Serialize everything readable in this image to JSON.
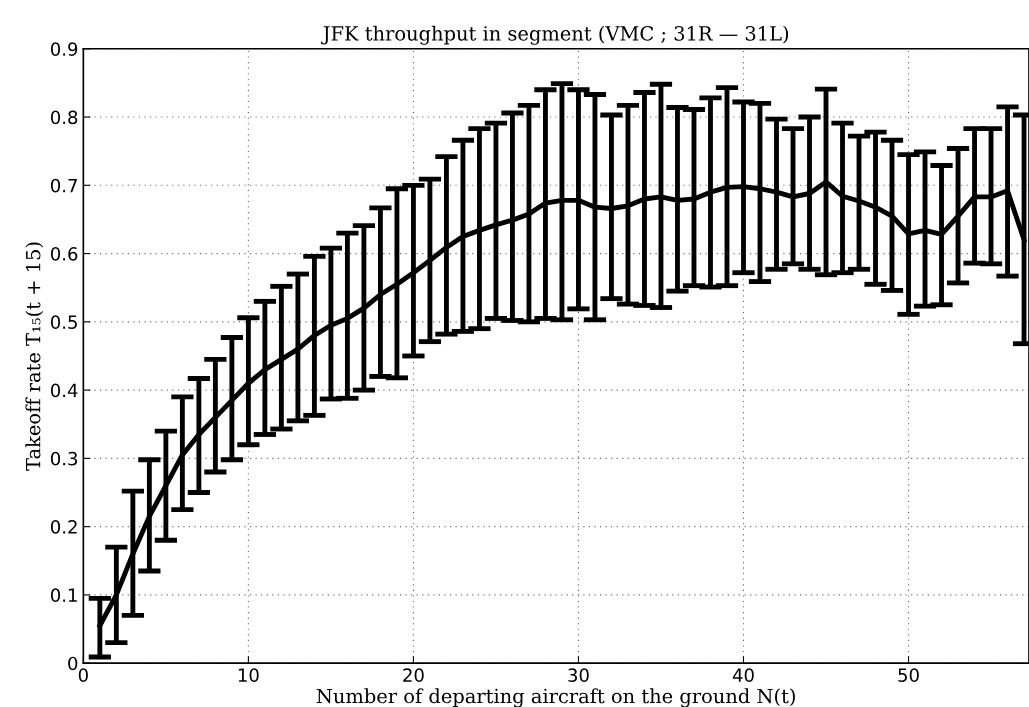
{
  "chart_data": {
    "type": "line",
    "title": "JFK throughput in segment (VMC ; 31R — 31L)",
    "xlabel": "Number of departing aircraft on the ground N(t)",
    "ylabel": "Takeoff rate T̄₁₅(t + 15)",
    "x": [
      1,
      2,
      3,
      4,
      5,
      6,
      7,
      8,
      9,
      10,
      11,
      12,
      13,
      14,
      15,
      16,
      17,
      18,
      19,
      20,
      21,
      22,
      23,
      24,
      25,
      26,
      27,
      28,
      29,
      30,
      31,
      32,
      33,
      34,
      35,
      36,
      37,
      38,
      39,
      40,
      41,
      42,
      43,
      44,
      45,
      46,
      47,
      48,
      49,
      50,
      51,
      52,
      53,
      54,
      55,
      56,
      57
    ],
    "series": [
      {
        "color": "#000000",
        "values": [
          0.055,
          0.1,
          0.16,
          0.215,
          0.26,
          0.305,
          0.335,
          0.36,
          0.385,
          0.41,
          0.43,
          0.445,
          0.46,
          0.48,
          0.495,
          0.505,
          0.52,
          0.54,
          0.555,
          0.572,
          0.59,
          0.609,
          0.625,
          0.634,
          0.642,
          0.649,
          0.658,
          0.674,
          0.678,
          0.678,
          0.668,
          0.666,
          0.67,
          0.68,
          0.683,
          0.678,
          0.68,
          0.69,
          0.697,
          0.698,
          0.695,
          0.69,
          0.683,
          0.688,
          0.705,
          0.684,
          0.677,
          0.668,
          0.655,
          0.629,
          0.634,
          0.628,
          0.655,
          0.683,
          0.683,
          0.692,
          0.62
        ],
        "errors": [
          [
            0.009,
            0.095
          ],
          [
            0.03,
            0.17
          ],
          [
            0.07,
            0.252
          ],
          [
            0.135,
            0.298
          ],
          [
            0.18,
            0.34
          ],
          [
            0.225,
            0.39
          ],
          [
            0.25,
            0.417
          ],
          [
            0.28,
            0.445
          ],
          [
            0.298,
            0.477
          ],
          [
            0.32,
            0.506
          ],
          [
            0.335,
            0.53
          ],
          [
            0.343,
            0.552
          ],
          [
            0.355,
            0.57
          ],
          [
            0.363,
            0.596
          ],
          [
            0.387,
            0.608
          ],
          [
            0.388,
            0.63
          ],
          [
            0.4,
            0.641
          ],
          [
            0.42,
            0.667
          ],
          [
            0.418,
            0.695
          ],
          [
            0.45,
            0.7
          ],
          [
            0.471,
            0.709
          ],
          [
            0.482,
            0.742
          ],
          [
            0.486,
            0.766
          ],
          [
            0.49,
            0.783
          ],
          [
            0.505,
            0.791
          ],
          [
            0.502,
            0.806
          ],
          [
            0.5,
            0.817
          ],
          [
            0.505,
            0.84
          ],
          [
            0.503,
            0.849
          ],
          [
            0.519,
            0.84
          ],
          [
            0.503,
            0.833
          ],
          [
            0.534,
            0.803
          ],
          [
            0.526,
            0.817
          ],
          [
            0.524,
            0.836
          ],
          [
            0.521,
            0.848
          ],
          [
            0.545,
            0.814
          ],
          [
            0.553,
            0.811
          ],
          [
            0.551,
            0.828
          ],
          [
            0.553,
            0.843
          ],
          [
            0.572,
            0.822
          ],
          [
            0.559,
            0.82
          ],
          [
            0.577,
            0.797
          ],
          [
            0.585,
            0.783
          ],
          [
            0.577,
            0.8
          ],
          [
            0.569,
            0.841
          ],
          [
            0.572,
            0.791
          ],
          [
            0.577,
            0.772
          ],
          [
            0.555,
            0.778
          ],
          [
            0.546,
            0.766
          ],
          [
            0.511,
            0.745
          ],
          [
            0.523,
            0.749
          ],
          [
            0.525,
            0.729
          ],
          [
            0.557,
            0.754
          ],
          [
            0.586,
            0.783
          ],
          [
            0.585,
            0.783
          ],
          [
            0.567,
            0.815
          ],
          [
            0.468,
            0.803
          ]
        ]
      }
    ],
    "xlim": [
      0,
      57.3
    ],
    "ylim": [
      0,
      0.9
    ],
    "xticks": [
      0,
      10,
      20,
      30,
      40,
      50
    ],
    "yticks": [
      0,
      0.1,
      0.2,
      0.3,
      0.4,
      0.5,
      0.6,
      0.7,
      0.8,
      0.9
    ],
    "grid": true,
    "marker": "none",
    "line_style": "solid"
  }
}
